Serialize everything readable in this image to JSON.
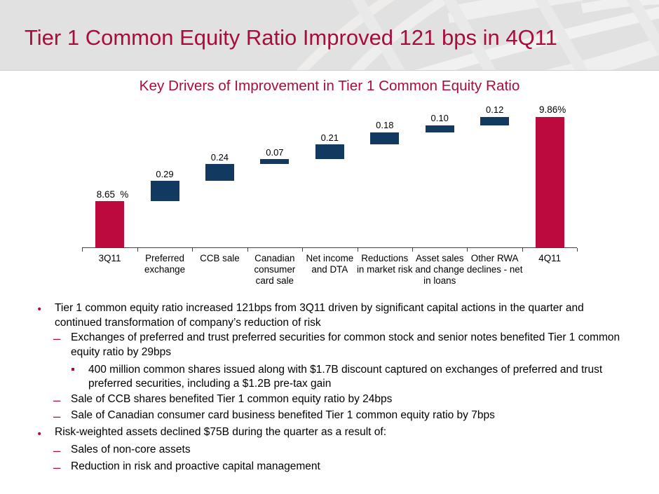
{
  "slide": {
    "title": "Tier 1 Common Equity Ratio Improved 121 bps in 4Q11",
    "colors": {
      "header_background": "#e2e1e1",
      "title_text": "#a80d3c",
      "bar_total": "#bd0a3e",
      "bar_delta": "#12395f",
      "body_text": "#000000",
      "axis": "#404040",
      "bullet_marker": "#a80d3c"
    }
  },
  "chart_data": {
    "type": "bar",
    "variant": "waterfall",
    "title": "Key Drivers of Improvement in Tier 1 Common Equity Ratio",
    "categories": [
      "3Q11",
      "Preferred\nexchange",
      "CCB sale",
      "Canadian\nconsumer\ncard sale",
      "Net income\nand DTA",
      "Reductions\nin market risk",
      "Asset sales\nand change\nin loans",
      "Other RWA\ndeclines - net",
      "4Q11"
    ],
    "values": [
      8.65,
      0.29,
      0.24,
      0.07,
      0.21,
      0.18,
      0.1,
      0.12,
      9.86
    ],
    "bar_kinds": [
      "total",
      "delta",
      "delta",
      "delta",
      "delta",
      "delta",
      "delta",
      "delta",
      "total"
    ],
    "bar_labels": [
      "8.65 %",
      "0.29",
      "0.24",
      "0.07",
      "0.21",
      "0.18",
      "0.10",
      "0.12",
      "9.86%"
    ],
    "xlabel": "",
    "ylabel": "",
    "ylim": [
      7.99,
      10.0
    ],
    "grid": false,
    "legend": false
  },
  "bullets": [
    {
      "level": 1,
      "marker": "•",
      "text": "Tier 1 common equity ratio increased 121bps from 3Q11 driven by significant capital actions in the quarter and continued transformation of company’s reduction of risk"
    },
    {
      "level": 2,
      "marker": "–",
      "text": "Exchanges of preferred and trust preferred securities for common stock and senior notes benefited Tier 1 common equity ratio by 29bps"
    },
    {
      "level": 3,
      "marker": "▪",
      "text": "400 million common shares issued along with $1.7B discount captured on exchanges of preferred and trust preferred securities, including a $1.2B pre-tax gain"
    },
    {
      "level": 2,
      "marker": "–",
      "text": "Sale of CCB shares benefited Tier 1 common equity ratio by 24bps"
    },
    {
      "level": 2,
      "marker": "–",
      "text": "Sale of Canadian consumer card business benefited Tier 1 common equity ratio by 7bps"
    },
    {
      "level": 1,
      "marker": "•",
      "text": "Risk-weighted assets declined $75B during the quarter as a result of:"
    },
    {
      "level": 2,
      "marker": "–",
      "text": "Sales of non-core assets"
    },
    {
      "level": 2,
      "marker": "–",
      "text": "Reduction in risk and proactive capital management"
    }
  ]
}
